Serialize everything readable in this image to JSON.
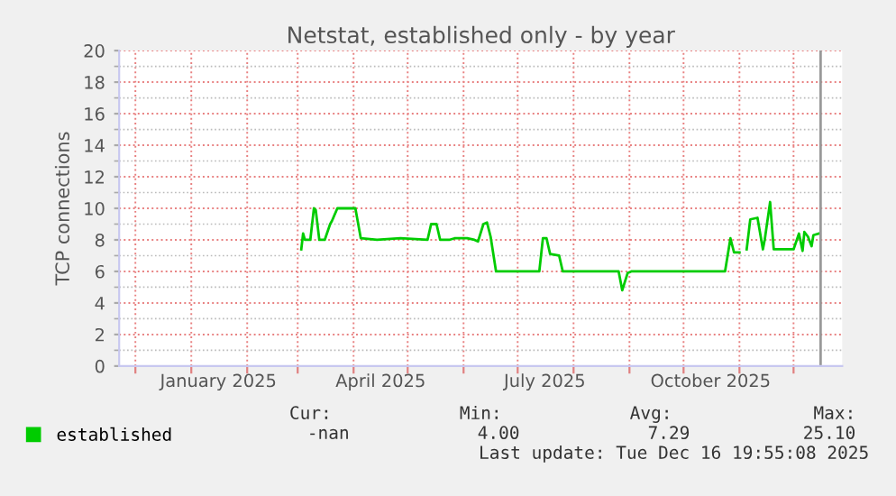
{
  "chart_data": {
    "type": "line",
    "title": "Netstat, established only - by year",
    "ylabel": "TCP connections",
    "x": [
      "2025-03-03",
      "2025-03-04",
      "2025-03-05",
      "2025-03-08",
      "2025-03-10",
      "2025-03-11",
      "2025-03-13",
      "2025-03-16",
      "2025-03-19",
      "2025-03-20",
      "2025-03-23",
      "2025-04-02",
      "2025-04-05",
      "2025-04-14",
      "2025-04-27",
      "2025-05-12",
      "2025-05-14",
      "2025-05-17",
      "2025-05-19",
      "2025-05-24",
      "2025-05-27",
      "2025-06-03",
      "2025-06-07",
      "2025-06-09",
      "2025-06-12",
      "2025-06-14",
      "2025-06-16",
      "2025-06-19",
      "2025-07-03",
      "2025-07-13",
      "2025-07-15",
      "2025-07-17",
      "2025-07-19",
      "2025-07-24",
      "2025-07-26",
      "2025-08-14",
      "2025-08-26",
      "2025-08-28",
      "2025-08-31",
      "2025-09-02",
      "2025-09-21",
      "2025-10-24",
      "2025-10-27",
      "2025-10-29",
      "2025-11-01",
      "2025-11-03",
      "2025-11-05",
      "2025-11-07",
      "2025-11-11",
      "2025-11-14",
      "2025-11-15",
      "2025-11-18",
      "2025-11-20",
      "2025-12-01",
      "2025-12-04",
      "2025-12-06",
      "2025-12-07",
      "2025-12-09",
      "2025-12-11",
      "2025-12-12",
      "2025-12-15"
    ],
    "series": [
      {
        "name": "established",
        "color": "#00cc00",
        "values": [
          7.4,
          8.4,
          8.0,
          8.0,
          10.0,
          9.9,
          8.0,
          8.0,
          9.0,
          9.2,
          10.0,
          10.0,
          8.1,
          8.0,
          8.1,
          8.0,
          9.0,
          9.0,
          8.0,
          8.0,
          8.1,
          8.1,
          8.0,
          7.9,
          9.0,
          9.1,
          8.2,
          6.0,
          6.0,
          6.0,
          8.1,
          8.1,
          7.1,
          7.0,
          6.0,
          6.0,
          6.0,
          4.8,
          5.9,
          6.0,
          6.0,
          6.0,
          8.1,
          7.2,
          7.2,
          null,
          7.4,
          9.3,
          9.4,
          7.4,
          8.0,
          10.4,
          7.4,
          7.4,
          8.4,
          7.3,
          8.5,
          8.2,
          7.6,
          8.3,
          8.4
        ]
      }
    ],
    "xlim": [
      "2024-11-22",
      "2025-12-28"
    ],
    "xticks": [
      {
        "value": "2024-12-01",
        "label": null
      },
      {
        "value": "2025-01-01",
        "label": null
      },
      {
        "value": "2025-01-16",
        "label": "January 2025"
      },
      {
        "value": "2025-02-01",
        "label": null
      },
      {
        "value": "2025-03-01",
        "label": null
      },
      {
        "value": "2025-04-01",
        "label": null
      },
      {
        "value": "2025-04-16",
        "label": "April 2025"
      },
      {
        "value": "2025-05-01",
        "label": null
      },
      {
        "value": "2025-06-01",
        "label": null
      },
      {
        "value": "2025-07-01",
        "label": null
      },
      {
        "value": "2025-07-16",
        "label": "July 2025"
      },
      {
        "value": "2025-08-01",
        "label": null
      },
      {
        "value": "2025-09-01",
        "label": null
      },
      {
        "value": "2025-10-01",
        "label": null
      },
      {
        "value": "2025-10-16",
        "label": "October 2025"
      },
      {
        "value": "2025-11-01",
        "label": null
      },
      {
        "value": "2025-12-01",
        "label": null
      }
    ],
    "ylim": [
      0,
      20
    ],
    "yticks": [
      0,
      2,
      4,
      6,
      8,
      10,
      12,
      14,
      16,
      18,
      20
    ],
    "ref_lines": [
      {
        "axis": "x",
        "value": "2025-12-16",
        "label": null,
        "color": "#999999"
      }
    ],
    "grid": true,
    "legend": "bottom",
    "marker": "none",
    "line_style": "solid",
    "annotations": [
      "Cur:",
      "Min:",
      "Avg:",
      "Max:",
      "-nan",
      "4.00",
      "7.29",
      "25.10",
      "Last update: Tue Dec 16 19:55:08 2025"
    ]
  }
}
